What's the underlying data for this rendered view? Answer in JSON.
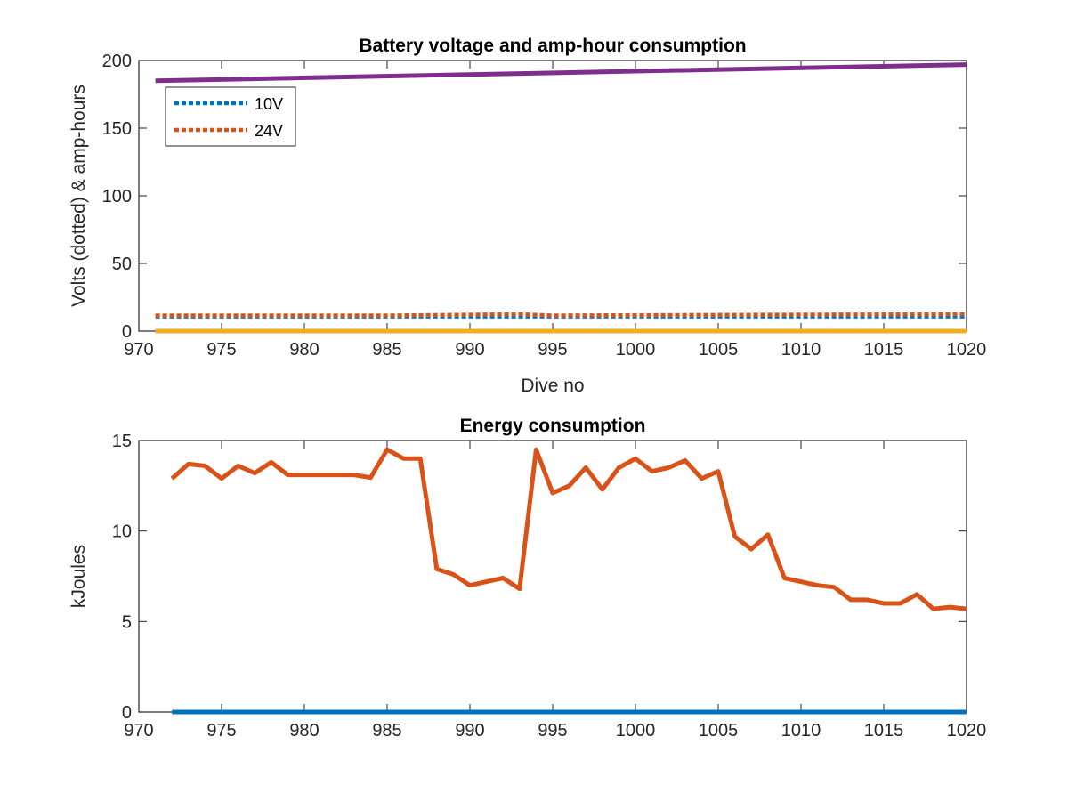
{
  "chart_data": [
    {
      "type": "line",
      "title": "Battery voltage and amp-hour consumption",
      "xlabel": "Dive no",
      "ylabel": "Volts (dotted) & amp-hours",
      "xlim": [
        970,
        1020
      ],
      "ylim": [
        0,
        200
      ],
      "xticks": [
        "970",
        "975",
        "980",
        "985",
        "990",
        "995",
        "1000",
        "1005",
        "1010",
        "1015",
        "1020"
      ],
      "yticks": [
        "0",
        "50",
        "100",
        "150",
        "200"
      ],
      "grid": false,
      "legend": {
        "position": "top-left",
        "entries": [
          "10V",
          "24V"
        ]
      },
      "series": [
        {
          "name": "10V",
          "style": "dotted",
          "color": "#0072BD",
          "x": [
            971,
            985,
            995,
            1005,
            1020
          ],
          "y": [
            10.8,
            10.8,
            10.8,
            10.8,
            10.8
          ]
        },
        {
          "name": "24V",
          "style": "dotted",
          "color": "#D95319",
          "x": [
            971,
            985,
            993,
            995,
            1005,
            1020
          ],
          "y": [
            11.5,
            11.5,
            12.5,
            11.5,
            12,
            12.5
          ]
        },
        {
          "style": "solid",
          "color": "#7E2F8E",
          "x": [
            971,
            1020
          ],
          "y": [
            185,
            197
          ]
        },
        {
          "style": "solid",
          "color": "#EDB120",
          "x": [
            971,
            1020
          ],
          "y": [
            0,
            0
          ]
        }
      ]
    },
    {
      "type": "line",
      "title": "Energy consumption",
      "xlabel": "",
      "ylabel": "kJoules",
      "xlim": [
        970,
        1020
      ],
      "ylim": [
        0,
        15
      ],
      "xticks": [
        "970",
        "975",
        "980",
        "985",
        "990",
        "995",
        "1000",
        "1005",
        "1010",
        "1015",
        "1020"
      ],
      "yticks": [
        "0",
        "5",
        "10",
        "15"
      ],
      "grid": false,
      "series": [
        {
          "style": "solid",
          "color": "#D95319",
          "x": [
            972,
            973,
            974,
            975,
            976,
            977,
            978,
            979,
            980,
            981,
            982,
            983,
            984,
            985,
            986,
            987,
            988,
            989,
            990,
            991,
            992,
            993,
            994,
            995,
            996,
            997,
            998,
            999,
            1000,
            1001,
            1002,
            1003,
            1004,
            1005,
            1006,
            1007,
            1008,
            1009,
            1010,
            1011,
            1012,
            1013,
            1014,
            1015,
            1016,
            1017,
            1018,
            1019,
            1020
          ],
          "y": [
            12.9,
            13.7,
            13.6,
            12.9,
            13.6,
            13.2,
            13.8,
            13.1,
            13.1,
            13.1,
            13.1,
            13.1,
            12.95,
            14.5,
            14.0,
            14.0,
            7.9,
            7.6,
            7.0,
            7.2,
            7.4,
            6.8,
            14.5,
            12.1,
            12.5,
            13.5,
            12.3,
            13.5,
            14.0,
            13.3,
            13.5,
            13.9,
            12.9,
            13.3,
            9.7,
            9.0,
            9.8,
            7.4,
            7.2,
            7.0,
            6.9,
            6.2,
            6.2,
            6.0,
            6.0,
            6.5,
            5.7,
            5.8,
            5.7
          ]
        },
        {
          "style": "solid",
          "color": "#0072BD",
          "x": [
            972,
            1020
          ],
          "y": [
            0,
            0
          ]
        }
      ]
    }
  ]
}
